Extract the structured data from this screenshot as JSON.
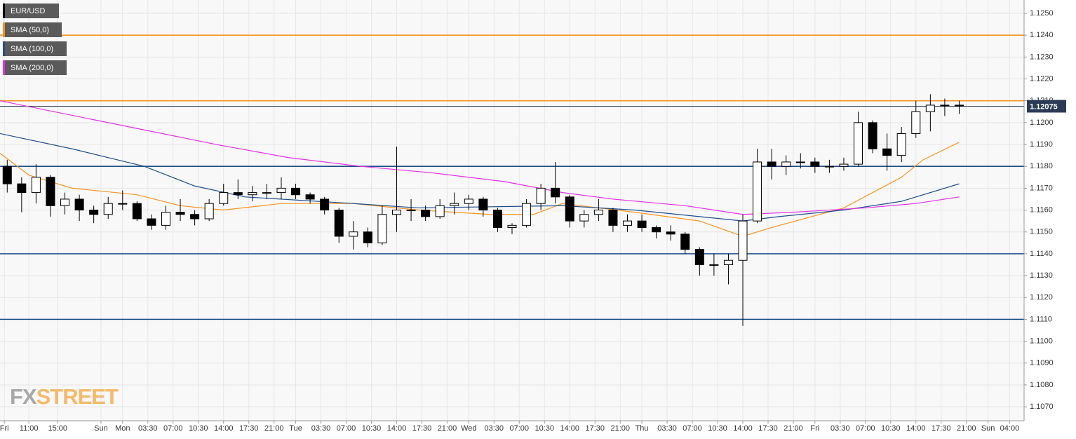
{
  "chart_data": {
    "type": "candlestick",
    "watermark": [
      "FX",
      "STREET"
    ],
    "xlim": [
      0,
      142
    ],
    "ylim": [
      1.10636,
      1.12561
    ],
    "grid": true,
    "xticks": [
      {
        "value": 0.6,
        "label": "Fri"
      },
      {
        "value": 4,
        "label": "11:00"
      },
      {
        "value": 8,
        "label": "15:00"
      },
      {
        "value": 14,
        "label": "Sun"
      },
      {
        "value": 17,
        "label": "Mon"
      },
      {
        "value": 20.5,
        "label": "03:30"
      },
      {
        "value": 24,
        "label": "07:00"
      },
      {
        "value": 27.5,
        "label": "10:30"
      },
      {
        "value": 31,
        "label": "14:00"
      },
      {
        "value": 34.5,
        "label": "17:30"
      },
      {
        "value": 38,
        "label": "21:00"
      },
      {
        "value": 41,
        "label": "Tue"
      },
      {
        "value": 44.5,
        "label": "03:30"
      },
      {
        "value": 48,
        "label": "07:00"
      },
      {
        "value": 51.5,
        "label": "10:30"
      },
      {
        "value": 55,
        "label": "14:00"
      },
      {
        "value": 58.5,
        "label": "17:30"
      },
      {
        "value": 62,
        "label": "21:00"
      },
      {
        "value": 65,
        "label": "Wed"
      },
      {
        "value": 68.5,
        "label": "03:30"
      },
      {
        "value": 72,
        "label": "07:00"
      },
      {
        "value": 75.5,
        "label": "10:30"
      },
      {
        "value": 79,
        "label": "14:00"
      },
      {
        "value": 82.5,
        "label": "17:30"
      },
      {
        "value": 86,
        "label": "21:00"
      },
      {
        "value": 89,
        "label": "Thu"
      },
      {
        "value": 92.5,
        "label": "03:30"
      },
      {
        "value": 96,
        "label": "07:00"
      },
      {
        "value": 99.5,
        "label": "10:30"
      },
      {
        "value": 103,
        "label": "14:00"
      },
      {
        "value": 106.5,
        "label": "17:30"
      },
      {
        "value": 110,
        "label": "21:00"
      },
      {
        "value": 113,
        "label": "Fri"
      },
      {
        "value": 116.5,
        "label": "03:30"
      },
      {
        "value": 120,
        "label": "07:00"
      },
      {
        "value": 123.5,
        "label": "10:30"
      },
      {
        "value": 127,
        "label": "14:00"
      },
      {
        "value": 130.5,
        "label": "17:30"
      },
      {
        "value": 134,
        "label": "21:00"
      },
      {
        "value": 137,
        "label": "Sun"
      },
      {
        "value": 140,
        "label": "04:00"
      }
    ],
    "yticks": [
      {
        "value": 1.107,
        "label": "1.1070"
      },
      {
        "value": 1.108,
        "label": "1.1080"
      },
      {
        "value": 1.109,
        "label": "1.1090"
      },
      {
        "value": 1.11,
        "label": "1.1100"
      },
      {
        "value": 1.111,
        "label": "1.1110"
      },
      {
        "value": 1.112,
        "label": "1.1120"
      },
      {
        "value": 1.113,
        "label": "1.1130"
      },
      {
        "value": 1.114,
        "label": "1.1140"
      },
      {
        "value": 1.115,
        "label": "1.1150"
      },
      {
        "value": 1.116,
        "label": "1.1160"
      },
      {
        "value": 1.117,
        "label": "1.1170"
      },
      {
        "value": 1.118,
        "label": "1.1180"
      },
      {
        "value": 1.119,
        "label": "1.1190"
      },
      {
        "value": 1.12,
        "label": "1.1200"
      },
      {
        "value": 1.121,
        "label": "1.1210"
      },
      {
        "value": 1.122,
        "label": "1.1220"
      },
      {
        "value": 1.123,
        "label": "1.1230"
      },
      {
        "value": 1.124,
        "label": "1.1240"
      },
      {
        "value": 1.125,
        "label": "1.1250"
      }
    ],
    "hlines": [
      {
        "value": 1.124,
        "color": "#f7931e"
      },
      {
        "value": 1.121,
        "color": "#f7931e"
      },
      {
        "value": 1.118,
        "color": "#1f4e8c"
      },
      {
        "value": 1.114,
        "color": "#1f4e8c"
      },
      {
        "value": 1.111,
        "color": "#1f4e8c"
      }
    ],
    "last_price": 1.12075,
    "last_price_color": "#2b3a55",
    "series": [
      {
        "name": "EUR/USD",
        "type": "candlestick",
        "color": "#000000",
        "x": [
          1,
          3,
          5,
          7,
          9,
          11,
          13,
          15,
          17,
          19,
          21,
          23,
          25,
          27,
          29,
          31,
          33,
          35,
          37,
          39,
          41,
          43,
          45,
          47,
          49,
          51,
          53,
          55,
          57,
          59,
          61,
          63,
          65,
          67,
          69,
          71,
          73,
          75,
          77,
          79,
          81,
          83,
          85,
          87,
          89,
          91,
          93,
          95,
          97,
          99,
          101,
          103,
          105,
          107,
          109,
          111,
          113,
          115,
          117,
          119,
          121,
          123,
          125,
          127,
          129,
          131,
          133
        ],
        "open": [
          1.118,
          1.1172,
          1.1168,
          1.1175,
          1.1162,
          1.1165,
          1.116,
          1.1158,
          1.1163,
          1.1163,
          1.1156,
          1.1153,
          1.1159,
          1.1158,
          1.1156,
          1.1163,
          1.1168,
          1.1167,
          1.1168,
          1.1168,
          1.117,
          1.1167,
          1.1165,
          1.116,
          1.1148,
          1.115,
          1.1145,
          1.1158,
          1.116,
          1.116,
          1.1157,
          1.1162,
          1.1163,
          1.1165,
          1.116,
          1.1152,
          1.1153,
          1.1163,
          1.117,
          1.1166,
          1.1155,
          1.1158,
          1.116,
          1.1153,
          1.1155,
          1.1152,
          1.115,
          1.1149,
          1.1142,
          1.1135,
          1.1135,
          1.1137,
          1.1155,
          1.1182,
          1.118,
          1.1182,
          1.1182,
          1.118,
          1.118,
          1.1181,
          1.12,
          1.1188,
          1.1185,
          1.1195,
          1.1205,
          1.1208,
          1.1208
        ],
        "high": [
          1.1183,
          1.1175,
          1.1181,
          1.1176,
          1.1168,
          1.1167,
          1.1162,
          1.1166,
          1.1169,
          1.1164,
          1.1158,
          1.1162,
          1.1165,
          1.116,
          1.1165,
          1.1172,
          1.1174,
          1.1171,
          1.1172,
          1.1175,
          1.1172,
          1.1168,
          1.1166,
          1.1161,
          1.1155,
          1.1152,
          1.1162,
          1.1189,
          1.1165,
          1.1162,
          1.1165,
          1.1168,
          1.1167,
          1.1166,
          1.1161,
          1.1154,
          1.1165,
          1.1172,
          1.1182,
          1.1167,
          1.116,
          1.1165,
          1.1161,
          1.1158,
          1.1158,
          1.1153,
          1.1153,
          1.115,
          1.1143,
          1.114,
          1.114,
          1.1158,
          1.1188,
          1.1188,
          1.1185,
          1.1186,
          1.1184,
          1.1183,
          1.1184,
          1.1205,
          1.1201,
          1.1195,
          1.1198,
          1.121,
          1.1213,
          1.1211,
          1.121
        ],
        "low": [
          1.1168,
          1.1159,
          1.1163,
          1.1157,
          1.1158,
          1.1155,
          1.1154,
          1.1156,
          1.116,
          1.1155,
          1.1151,
          1.1151,
          1.1155,
          1.1153,
          1.1155,
          1.1162,
          1.1165,
          1.1164,
          1.1165,
          1.1165,
          1.1165,
          1.1163,
          1.1158,
          1.1145,
          1.1142,
          1.1143,
          1.1144,
          1.115,
          1.1155,
          1.1155,
          1.1156,
          1.1158,
          1.116,
          1.1157,
          1.115,
          1.1149,
          1.1152,
          1.116,
          1.1163,
          1.1152,
          1.1152,
          1.1155,
          1.115,
          1.115,
          1.115,
          1.1147,
          1.1146,
          1.114,
          1.113,
          1.113,
          1.1126,
          1.1107,
          1.1154,
          1.1174,
          1.1176,
          1.1179,
          1.1177,
          1.1177,
          1.1178,
          1.118,
          1.1186,
          1.1178,
          1.1182,
          1.1193,
          1.1196,
          1.1203,
          1.1204
        ],
        "close": [
          1.1172,
          1.1168,
          1.1175,
          1.1162,
          1.1165,
          1.116,
          1.1158,
          1.1163,
          1.1163,
          1.1156,
          1.1153,
          1.1159,
          1.1158,
          1.1156,
          1.1163,
          1.1168,
          1.1167,
          1.1168,
          1.1168,
          1.117,
          1.1167,
          1.1165,
          1.116,
          1.1148,
          1.115,
          1.1145,
          1.1158,
          1.116,
          1.116,
          1.1157,
          1.1162,
          1.1163,
          1.1165,
          1.116,
          1.1152,
          1.1153,
          1.1163,
          1.117,
          1.1166,
          1.1155,
          1.1158,
          1.116,
          1.1153,
          1.1155,
          1.1152,
          1.115,
          1.1149,
          1.1142,
          1.1135,
          1.1135,
          1.1137,
          1.1155,
          1.1182,
          1.118,
          1.1182,
          1.1182,
          1.118,
          1.118,
          1.1181,
          1.12,
          1.1188,
          1.1185,
          1.1195,
          1.1205,
          1.1208,
          1.1208,
          1.12075
        ]
      },
      {
        "name": "SMA (50,0)",
        "type": "line",
        "color": "#f7931e",
        "x": [
          0,
          4,
          10,
          19,
          25,
          31,
          39,
          49,
          58,
          68,
          74,
          78,
          88,
          97,
          103,
          107,
          117,
          125,
          128,
          133
        ],
        "values": [
          1.1186,
          1.1176,
          1.117,
          1.1167,
          1.1162,
          1.116,
          1.1163,
          1.1163,
          1.116,
          1.1158,
          1.1158,
          1.1163,
          1.1159,
          1.1155,
          1.1148,
          1.1152,
          1.1161,
          1.1175,
          1.1183,
          1.1191
        ]
      },
      {
        "name": "SMA (100,0)",
        "type": "line",
        "color": "#1f4e8c",
        "x": [
          0,
          10,
          20,
          27,
          34,
          49,
          58,
          78,
          88,
          97,
          103,
          108,
          117,
          125,
          133
        ],
        "values": [
          1.1195,
          1.1188,
          1.118,
          1.1171,
          1.1166,
          1.1163,
          1.1161,
          1.1162,
          1.116,
          1.1157,
          1.1155,
          1.1157,
          1.116,
          1.1164,
          1.1172
        ]
      },
      {
        "name": "SMA (200,0)",
        "type": "line",
        "color": "#e62ee6",
        "x": [
          0,
          15,
          30,
          40,
          50,
          60,
          70,
          78,
          85,
          95,
          103,
          110,
          120,
          127,
          133
        ],
        "values": [
          1.121,
          1.12,
          1.119,
          1.1184,
          1.118,
          1.1177,
          1.1173,
          1.1168,
          1.1165,
          1.1162,
          1.1158,
          1.1159,
          1.1161,
          1.1163,
          1.1166
        ]
      }
    ]
  }
}
